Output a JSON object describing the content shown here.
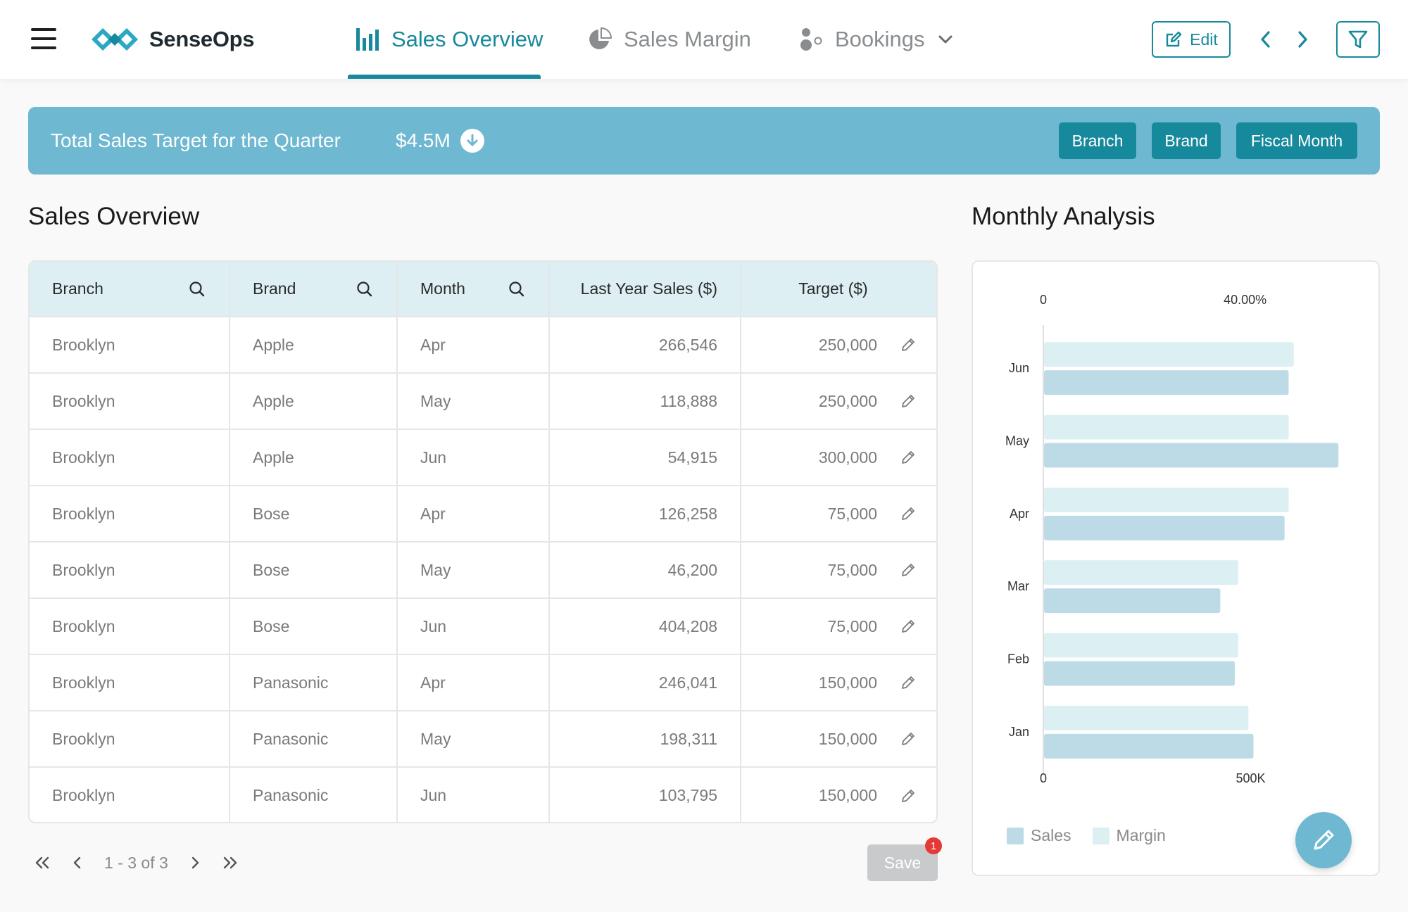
{
  "app": {
    "name": "SenseOps"
  },
  "nav": {
    "tabs": [
      {
        "label": "Sales Overview",
        "icon": "bar-chart-icon",
        "active": true
      },
      {
        "label": "Sales Margin",
        "icon": "pie-chart-icon",
        "active": false
      },
      {
        "label": "Bookings",
        "icon": "bubble-chart-icon",
        "active": false
      }
    ],
    "edit_label": "Edit"
  },
  "banner": {
    "title": "Total Sales Target for the Quarter",
    "value": "$4.5M",
    "chips": [
      "Branch",
      "Brand",
      "Fiscal Month"
    ]
  },
  "sales_overview": {
    "title": "Sales Overview",
    "columns": [
      "Branch",
      "Brand",
      "Month",
      "Last Year Sales ($)",
      "Target ($)"
    ],
    "rows": [
      [
        "Brooklyn",
        "Apple",
        "Apr",
        "266,546",
        "250,000"
      ],
      [
        "Brooklyn",
        "Apple",
        "May",
        "118,888",
        "250,000"
      ],
      [
        "Brooklyn",
        "Apple",
        "Jun",
        "54,915",
        "300,000"
      ],
      [
        "Brooklyn",
        "Bose",
        "Apr",
        "126,258",
        "75,000"
      ],
      [
        "Brooklyn",
        "Bose",
        "May",
        "46,200",
        "75,000"
      ],
      [
        "Brooklyn",
        "Bose",
        "Jun",
        "404,208",
        "75,000"
      ],
      [
        "Brooklyn",
        "Panasonic",
        "Apr",
        "246,041",
        "150,000"
      ],
      [
        "Brooklyn",
        "Panasonic",
        "May",
        "198,311",
        "150,000"
      ],
      [
        "Brooklyn",
        "Panasonic",
        "Jun",
        "103,795",
        "150,000"
      ]
    ],
    "pagination": "1 - 3 of 3",
    "save_label": "Save",
    "save_badge": "1"
  },
  "monthly_analysis": {
    "title": "Monthly Analysis"
  },
  "colors": {
    "accent": "#17899c",
    "banner": "#6eb8d1",
    "sales_bar": "#bcdbe6",
    "margin_bar": "#dcf0f3"
  },
  "chart_data": {
    "type": "bar",
    "orientation": "horizontal",
    "categories": [
      "Jun",
      "May",
      "Apr",
      "Mar",
      "Feb",
      "Jan"
    ],
    "series": [
      {
        "name": "Margin",
        "axis": "top",
        "unit": "percent",
        "values": [
          49.5,
          48.5,
          48.5,
          38.5,
          38.5,
          40.5
        ]
      },
      {
        "name": "Sales",
        "axis": "bottom",
        "unit": "dollars",
        "values": [
          590000,
          710000,
          580000,
          425000,
          460000,
          505000
        ]
      }
    ],
    "top_axis": {
      "ticks": [
        "0",
        "40.00%"
      ],
      "range": [
        0,
        60
      ]
    },
    "bottom_axis": {
      "ticks": [
        "0",
        "500K"
      ],
      "range": [
        0,
        730000
      ]
    },
    "legend": [
      "Sales",
      "Margin"
    ],
    "legend_position": "bottom-left",
    "grid": false
  }
}
